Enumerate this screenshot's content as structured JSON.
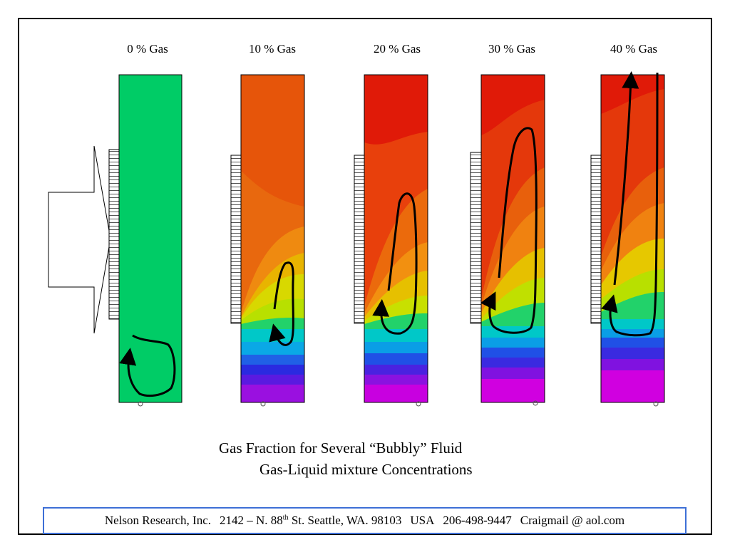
{
  "panels": [
    {
      "title": "0 % Gas"
    },
    {
      "title": "10 % Gas"
    },
    {
      "title": "20 % Gas"
    },
    {
      "title": "30 % Gas"
    },
    {
      "title": "40 % Gas"
    }
  ],
  "caption": {
    "line1": "Gas Fraction for Several “Bubbly” Fluid",
    "line2": "Gas-Liquid mixture Concentrations"
  },
  "footer": {
    "company": "Nelson Research, Inc.",
    "address_prefix": "2142 –  N. 88",
    "address_sup": "th",
    "address_suffix": " St. Seattle, WA. 98103",
    "country": "USA",
    "phone": "206-498-9447",
    "email": "Craigmail @ aol.com"
  },
  "colors": {
    "liquid_green": "#00cc66",
    "red": "#e01a08",
    "orange": "#f07a0a",
    "yellow": "#e6e600",
    "cyan": "#00c8e0",
    "blue": "#2222e0",
    "magenta": "#d000e0",
    "footer_border": "#3d6fd6"
  }
}
